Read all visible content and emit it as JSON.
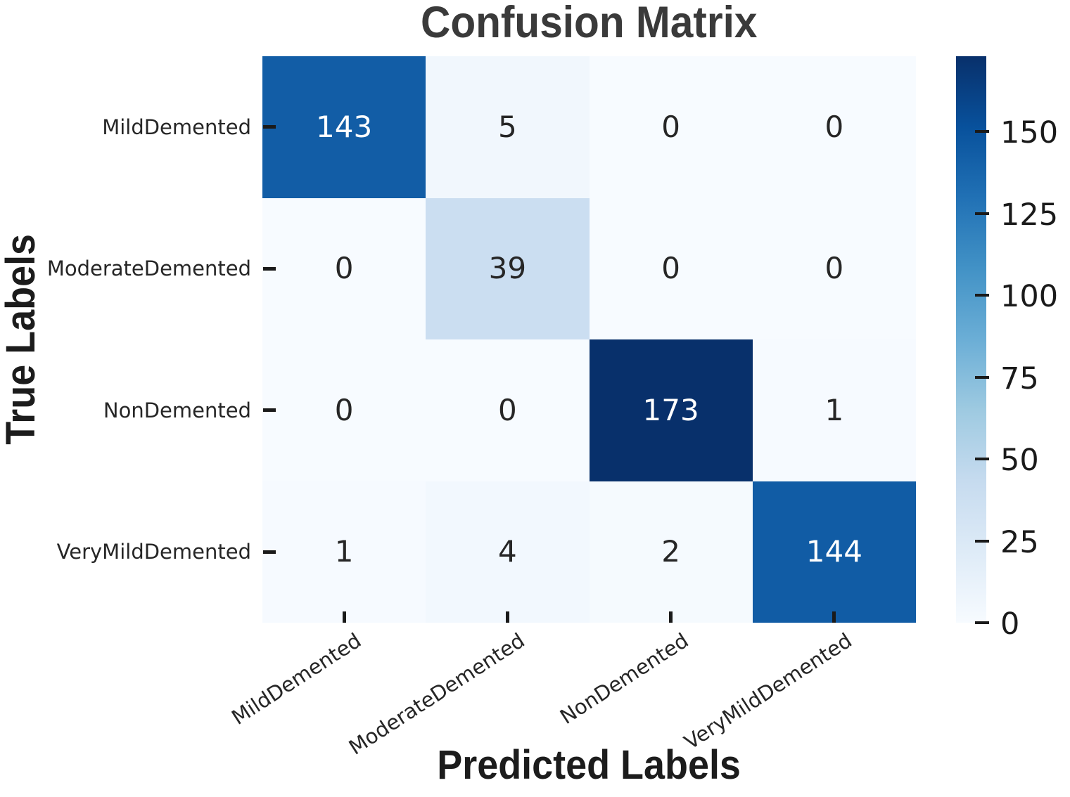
{
  "chart_data": {
    "type": "heatmap",
    "title": "Confusion Matrix",
    "xlabel": "Predicted Labels",
    "ylabel": "True Labels",
    "x_categories": [
      "MildDemented",
      "ModerateDemented",
      "NonDemented",
      "VeryMildDemented"
    ],
    "y_categories": [
      "MildDemented",
      "ModerateDemented",
      "NonDemented",
      "VeryMildDemented"
    ],
    "matrix": [
      [
        143,
        5,
        0,
        0
      ],
      [
        0,
        39,
        0,
        0
      ],
      [
        0,
        0,
        173,
        1
      ],
      [
        1,
        4,
        2,
        144
      ]
    ],
    "colormap": "Blues",
    "vmin": 0,
    "vmax": 173,
    "colorbar_ticks": [
      150,
      125,
      100,
      75,
      50,
      25,
      0
    ],
    "legend_position": "right-colorbar",
    "grid": false,
    "annotations": true
  },
  "colors": {
    "cmap_stops": [
      "#f7fbff",
      "#deebf7",
      "#c6dbef",
      "#9ecae1",
      "#6baed6",
      "#4292c6",
      "#2171b5",
      "#08519c",
      "#08306b"
    ],
    "title_color": "#3a3a3a",
    "axis_label_color": "#1c1c1c",
    "tick_label_color": "#262626",
    "annot_light": "#ffffff",
    "annot_dark": "#262626"
  }
}
